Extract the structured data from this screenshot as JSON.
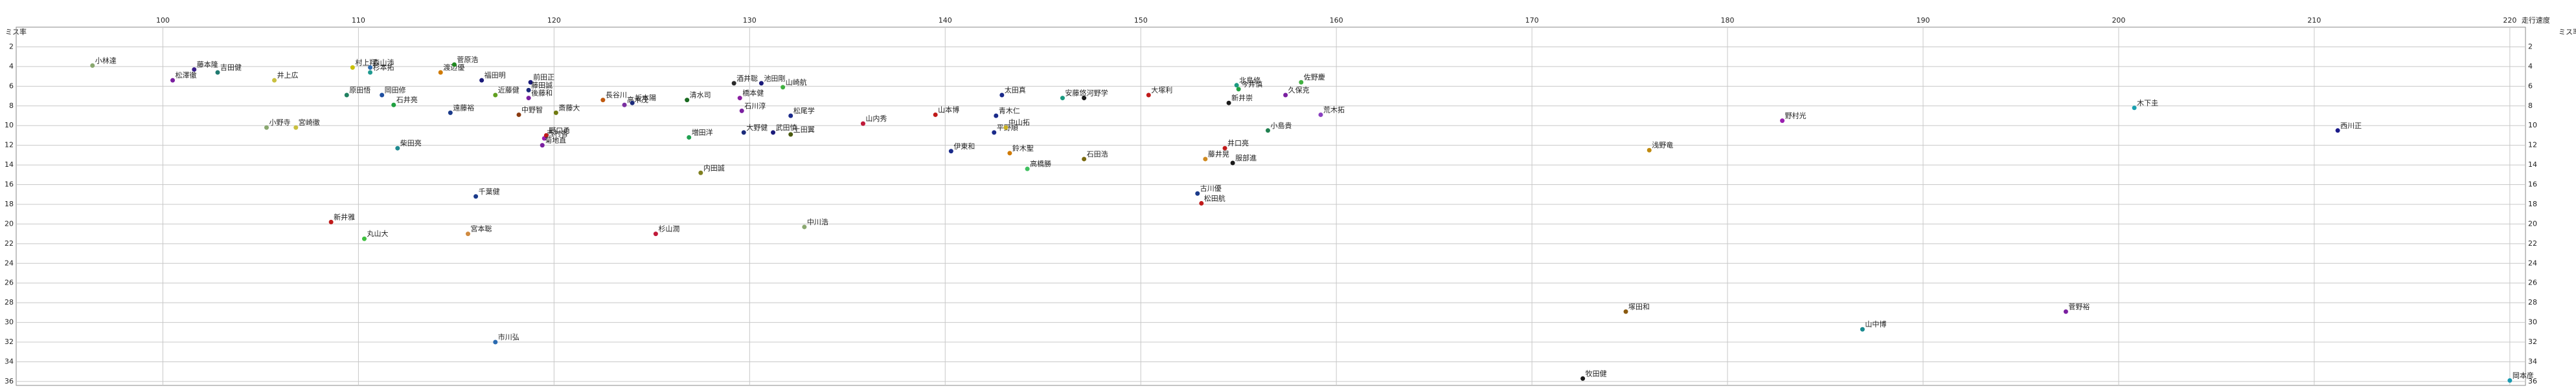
{
  "chart_data": {
    "type": "scatter",
    "x_label": "走行速度",
    "y_label": "ミス率",
    "xlim": [
      92.5,
      220.8
    ],
    "ylim": [
      0,
      36.4
    ],
    "y_inverted": true,
    "grid": true,
    "xticks": [
      100,
      110,
      120,
      130,
      140,
      150,
      160,
      170,
      180,
      190,
      200,
      210,
      220
    ],
    "yticks": [
      2,
      4,
      6,
      8,
      10,
      12,
      14,
      16,
      18,
      20,
      22,
      24,
      26,
      28,
      30,
      32,
      34,
      36
    ],
    "x": [
      96.4,
      100.5,
      101.6,
      102.8,
      105.7,
      109.7,
      110.6,
      110.6,
      109.4,
      111.2,
      111.8,
      114.2,
      114.9,
      116.3,
      118.8,
      118.7,
      117.0,
      118.7,
      114.7,
      118.2,
      120.1,
      122.5,
      123.6,
      124.0,
      126.8,
      129.2,
      130.6,
      131.7,
      129.5,
      129.6,
      132.1,
      105.3,
      106.8,
      112.0,
      119.5,
      119.6,
      119.4,
      126.9,
      129.7,
      131.2,
      132.1,
      127.5,
      135.8,
      139.5,
      142.6,
      142.5,
      143.1,
      140.3,
      143.3,
      144.2,
      147.1,
      142.9,
      146.0,
      147.1,
      150.4,
      154.9,
      155.0,
      154.5,
      157.4,
      158.2,
      159.2,
      156.5,
      154.3,
      153.3,
      154.7,
      152.9,
      153.1,
      110.3,
      116.0,
      108.6,
      115.6,
      125.2,
      132.8,
      117.0,
      176.0,
      182.8,
      200.8,
      211.2,
      174.8,
      186.9,
      197.3,
      172.6,
      220.0
    ],
    "y": [
      3.9,
      5.4,
      4.3,
      4.6,
      5.4,
      4.1,
      4.1,
      4.6,
      6.9,
      6.9,
      7.9,
      4.6,
      3.8,
      5.4,
      5.6,
      6.4,
      6.9,
      7.2,
      8.7,
      8.9,
      8.7,
      7.4,
      7.9,
      7.7,
      7.4,
      5.7,
      5.7,
      6.1,
      7.2,
      8.5,
      9.0,
      10.2,
      10.2,
      12.3,
      11.3,
      11.0,
      12.0,
      11.2,
      10.7,
      10.7,
      10.9,
      14.8,
      9.8,
      8.9,
      9.0,
      10.7,
      10.2,
      12.6,
      12.8,
      14.4,
      13.4,
      6.9,
      7.2,
      7.2,
      6.9,
      5.9,
      6.3,
      7.7,
      6.9,
      5.6,
      8.9,
      10.5,
      12.3,
      13.4,
      13.8,
      16.9,
      17.9,
      21.5,
      17.2,
      19.8,
      21.0,
      21.0,
      20.3,
      32.0,
      12.5,
      9.5,
      8.2,
      10.5,
      28.9,
      30.7,
      28.9,
      35.7,
      35.9
    ],
    "labels": [
      "小林達",
      "松澤徹",
      "藤本隆",
      "吉田健",
      "井上広",
      "村上翔",
      "森山渉",
      "杉本拓",
      "原田悟",
      "岡田修",
      "石井亮",
      "渡辺優",
      "菅原浩",
      "福田明",
      "前田正",
      "藤田誠",
      "近藤健",
      "後藤和",
      "遠藤裕",
      "中野智",
      "斎藤大",
      "長谷川",
      "高木茂",
      "坂本陽",
      "清水司",
      "酒井聡",
      "池田剛",
      "山崎航",
      "橋本健",
      "石川淳",
      "松尾学",
      "小野寺",
      "宮崎徹",
      "柴田亮",
      "西村香",
      "野口勇",
      "菊地直",
      "増田洋",
      "大野健",
      "武田慎",
      "上田翼",
      "内田誠",
      "山内秀",
      "山本博",
      "青木仁",
      "平野順",
      "中山拓",
      "伊東和",
      "鈴木聖",
      "高橋勝",
      "石田浩",
      "太田真",
      "安藤悠",
      "河野学",
      "大塚利",
      "北島修",
      "今井慎",
      "新井崇",
      "久保克",
      "佐野慶",
      "荒木拓",
      "小島貴",
      "井口亮",
      "藤井晃",
      "服部進",
      "古川優",
      "松田航",
      "丸山大",
      "千葉健",
      "新井雅",
      "宮本聡",
      "杉山潤",
      "中川浩",
      "市川弘",
      "浅野竜",
      "野村光",
      "木下圭",
      "西川正",
      "塚田和",
      "山中博",
      "菅野裕",
      "牧田健",
      "岡本彦"
    ],
    "colors": [
      "#8aa870",
      "#7a1fa0",
      "#3a1f8a",
      "#1f7a70",
      "#c9c040",
      "#c9c000",
      "#2a6ab0",
      "#1f9a90",
      "#208060",
      "#1f4fa0",
      "#20a040",
      "#d07a00",
      "#208a20",
      "#1a1a7a",
      "#1a1a7a",
      "#1a2a7a",
      "#60a020",
      "#7a1fa0",
      "#1a3a8a",
      "#8a3a10",
      "#707a10",
      "#c05a10",
      "#7a2fa0",
      "#1a2a7a",
      "#1a6a20",
      "#2a2a2a",
      "#1a1a7a",
      "#40b040",
      "#8a1fa0",
      "#7a1fa0",
      "#1a2a8a",
      "#8aa870",
      "#c9c040",
      "#1f8a90",
      "#9a1fb0",
      "#c01a1a",
      "#7a1fa0",
      "#20a050",
      "#1a2a7a",
      "#1a1a7a",
      "#4a5a10",
      "#808020",
      "#c01a3a",
      "#c01a1a",
      "#1a2a8a",
      "#1a2a8a",
      "#c9b020",
      "#1a2a8a",
      "#d07a00",
      "#40c060",
      "#7a6a10",
      "#1a2a8a",
      "#1a9a80",
      "#1a1a1a",
      "#c01a1a",
      "#1a9a80",
      "#20a040",
      "#1a1a1a",
      "#7a1fa0",
      "#40b040",
      "#8a40c0",
      "#208050",
      "#c01a1a",
      "#d08a20",
      "#1a1a1a",
      "#1a3a8a",
      "#c01a1a",
      "#40c040",
      "#1a3a8a",
      "#c01a1a",
      "#d08a40",
      "#c01a3a",
      "#8aa870",
      "#2a6ab0",
      "#c08a10",
      "#9a1fb0",
      "#1aa0b0",
      "#1a1a8a",
      "#8a5a10",
      "#1a8a90",
      "#7a1fa0",
      "#1a1a1a",
      "#1a9ab0"
    ]
  }
}
